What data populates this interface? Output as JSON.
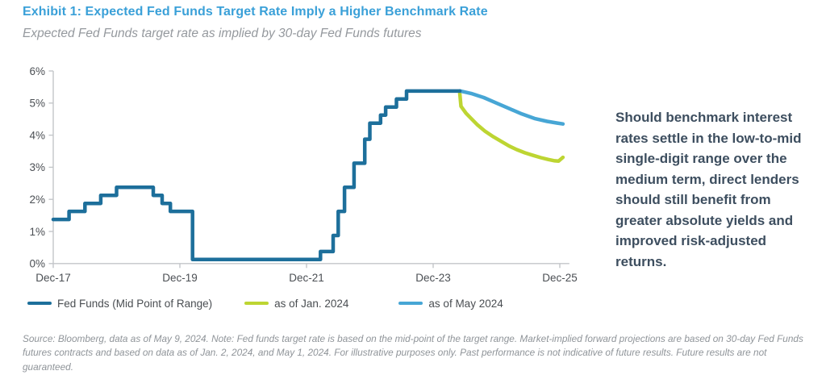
{
  "header": {
    "title": "Exhibit 1: Expected Fed Funds Target Rate Imply a Higher Benchmark Rate",
    "subtitle": "Expected Fed Funds target rate as implied by 30-day Fed Funds futures"
  },
  "colors": {
    "title": "#3aa0d8",
    "fed_funds_line": "#1d6f9b",
    "jan_2024_line": "#bdd532",
    "may_2024_line": "#47a6d5",
    "axis": "#c3c6c9",
    "axis_text": "#4b4f54",
    "note_text": "#3d4e5f",
    "muted_text": "#90959a"
  },
  "chart_data": {
    "type": "line",
    "title": "Expected Fed Funds target rate as implied by 30-day Fed Funds futures",
    "xlabel": "",
    "ylabel": "",
    "grid": false,
    "legend_position": "bottom",
    "x_axis": {
      "unit": "years since Dec-2017",
      "range": [
        0,
        8.1
      ],
      "ticks": [
        {
          "label": "Dec-17",
          "x": 0
        },
        {
          "label": "Dec-19",
          "x": 2
        },
        {
          "label": "Dec-21",
          "x": 4
        },
        {
          "label": "Dec-23",
          "x": 6
        },
        {
          "label": "Dec-25",
          "x": 8
        }
      ]
    },
    "y_axis": {
      "unit": "%",
      "range": [
        0,
        6
      ],
      "ticks": [
        {
          "label": "0%",
          "v": 0
        },
        {
          "label": "1%",
          "v": 1
        },
        {
          "label": "2%",
          "v": 2
        },
        {
          "label": "3%",
          "v": 3
        },
        {
          "label": "4%",
          "v": 4
        },
        {
          "label": "5%",
          "v": 5
        },
        {
          "label": "6%",
          "v": 6
        }
      ]
    },
    "series": [
      {
        "name": "Fed Funds (Mid Point of Range)",
        "color": "#1d6f9b",
        "style": "step",
        "points": [
          [
            0.0,
            1.375
          ],
          [
            0.25,
            1.625
          ],
          [
            0.5,
            1.875
          ],
          [
            0.75,
            2.125
          ],
          [
            1.0,
            2.375
          ],
          [
            1.58,
            2.125
          ],
          [
            1.72,
            1.875
          ],
          [
            1.85,
            1.625
          ],
          [
            2.2,
            0.125
          ],
          [
            4.22,
            0.375
          ],
          [
            4.42,
            0.875
          ],
          [
            4.5,
            1.625
          ],
          [
            4.6,
            2.375
          ],
          [
            4.75,
            3.125
          ],
          [
            4.92,
            3.875
          ],
          [
            5.0,
            4.375
          ],
          [
            5.17,
            4.625
          ],
          [
            5.25,
            4.875
          ],
          [
            5.42,
            5.125
          ],
          [
            5.58,
            5.375
          ],
          [
            6.42,
            5.375
          ]
        ]
      },
      {
        "name": "as of Jan. 2024",
        "color": "#bdd532",
        "style": "line",
        "points": [
          [
            6.42,
            5.3
          ],
          [
            6.44,
            4.9
          ],
          [
            6.52,
            4.68
          ],
          [
            6.6,
            4.52
          ],
          [
            6.7,
            4.32
          ],
          [
            6.82,
            4.12
          ],
          [
            6.95,
            3.95
          ],
          [
            7.08,
            3.8
          ],
          [
            7.2,
            3.66
          ],
          [
            7.32,
            3.55
          ],
          [
            7.45,
            3.45
          ],
          [
            7.58,
            3.37
          ],
          [
            7.7,
            3.3
          ],
          [
            7.82,
            3.24
          ],
          [
            7.92,
            3.2
          ],
          [
            7.98,
            3.19
          ],
          [
            8.05,
            3.31
          ]
        ]
      },
      {
        "name": "as of May 2024",
        "color": "#47a6d5",
        "style": "line",
        "points": [
          [
            6.42,
            5.38
          ],
          [
            6.6,
            5.3
          ],
          [
            6.8,
            5.17
          ],
          [
            7.0,
            5.0
          ],
          [
            7.2,
            4.83
          ],
          [
            7.4,
            4.66
          ],
          [
            7.6,
            4.52
          ],
          [
            7.8,
            4.43
          ],
          [
            7.95,
            4.38
          ],
          [
            8.05,
            4.35
          ]
        ]
      }
    ]
  },
  "note": {
    "text": "Should benchmark interest rates settle in the low-to-mid single-digit range over the medium term, direct lenders should still benefit from greater absolute yields and improved risk-adjusted returns."
  },
  "footnote": {
    "text": "Source: Bloomberg, data as of May 9, 2024. Note: Fed funds target rate is based on the mid-point of the target range. Market-implied forward projections are based on 30-day Fed Funds futures contracts and based on data as of Jan. 2, 2024, and May 1, 2024. For illustrative purposes only. Past performance is not indicative of future results. Future results are not guaranteed."
  }
}
